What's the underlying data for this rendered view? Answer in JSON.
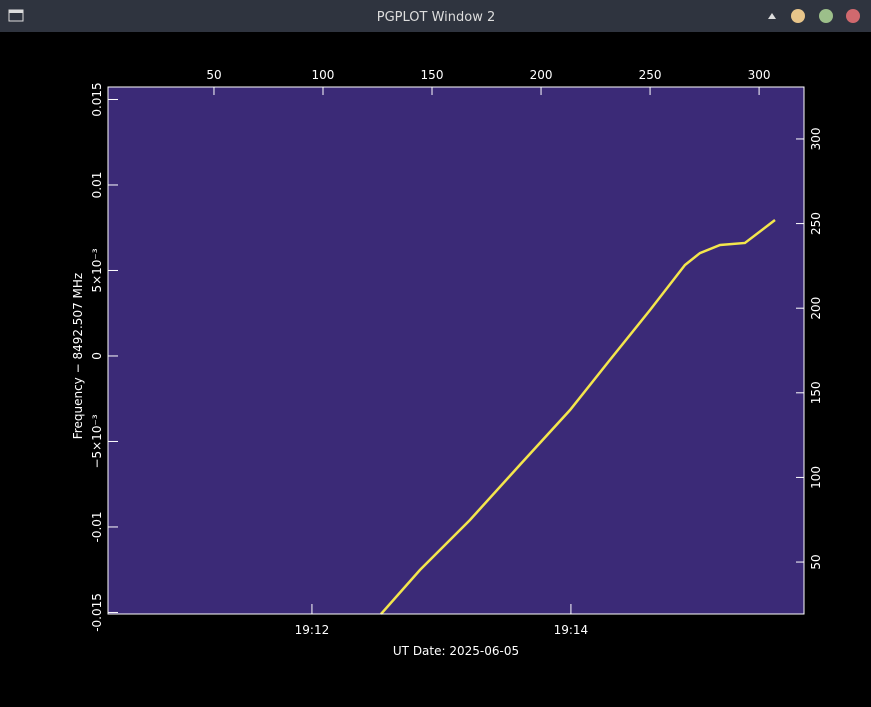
{
  "window": {
    "title": "PGPLOT Window 2"
  },
  "chart_data": {
    "type": "line",
    "background": "#3b2a77",
    "xlabel": "UT Date: 2025-06-05",
    "ylabel": "Frequency − 8492.507 MHz",
    "xlim": [
      69025.5,
      69348
    ],
    "xticks": [
      {
        "value": 69120,
        "label": "19:12"
      },
      {
        "value": 69240,
        "label": "19:14"
      }
    ],
    "x2lim": [
      1.4,
      320.6
    ],
    "x2ticks": [
      50,
      100,
      150,
      200,
      250,
      300
    ],
    "ylim": [
      -0.01509,
      0.01573
    ],
    "yticks": [
      -0.015,
      -0.01,
      {
        "value": -0.005,
        "label": "−5×10⁻³"
      },
      0,
      {
        "value": 0.005,
        "label": "5×10⁻³"
      },
      0.01,
      0.015
    ],
    "y2lim": [
      19.3,
      330.7
    ],
    "y2ticks": [
      50,
      100,
      150,
      200,
      250,
      300
    ],
    "series": [
      {
        "color": "#f4e64c",
        "x": [
          126.6,
          144.5,
          167.4,
          190.3,
          213.3,
          231.6,
          250.0,
          266.0,
          272.9,
          282.1,
          293.5,
          307.3
        ],
        "values": [
          -0.01509,
          -0.01251,
          -0.00959,
          -0.00637,
          -0.00316,
          -0.00023,
          0.00269,
          0.00532,
          0.00602,
          0.00649,
          0.00661,
          0.00795
        ]
      }
    ]
  }
}
